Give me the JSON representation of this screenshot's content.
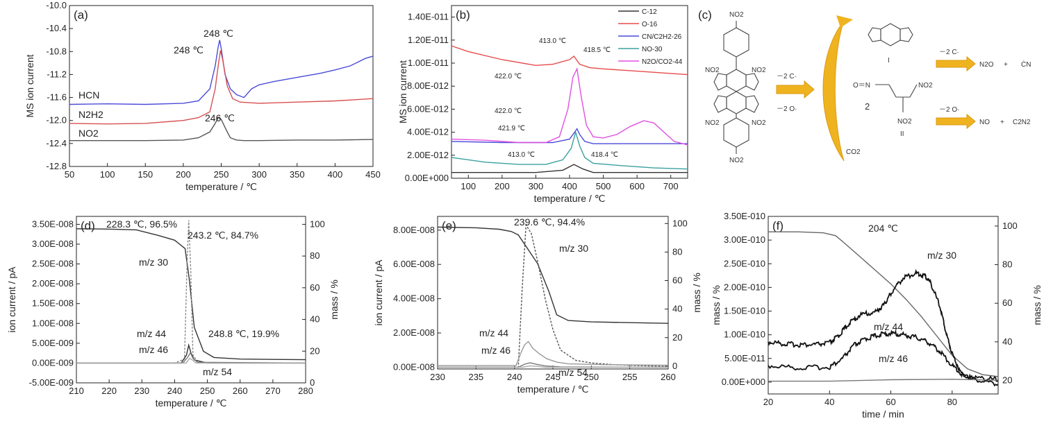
{
  "chart_data": [
    {
      "id": "a",
      "type": "line",
      "panel_label": "(a)",
      "xlabel": "temperature / ℃",
      "ylabel": "MS ion current",
      "xlim": [
        50,
        450
      ],
      "ylim": [
        -12.8,
        -10.0
      ],
      "xticks": [
        50,
        100,
        150,
        200,
        250,
        300,
        350,
        400,
        450
      ],
      "yticks": [
        "-10.0",
        "-10.4",
        "-10.8",
        "-11.2",
        "-11.6",
        "-12.0",
        "-12.4",
        "-12.8"
      ],
      "series": [
        {
          "name": "HCN",
          "color": "#4a4ad8",
          "x": [
            50,
            100,
            150,
            200,
            220,
            235,
            242,
            246,
            248,
            250,
            255,
            262,
            270,
            280,
            290,
            300,
            320,
            350,
            380,
            400,
            420,
            440,
            450
          ],
          "y": [
            -11.72,
            -11.71,
            -11.72,
            -11.7,
            -11.66,
            -11.45,
            -11.05,
            -10.72,
            -10.6,
            -10.75,
            -11.2,
            -11.45,
            -11.55,
            -11.6,
            -11.45,
            -11.38,
            -11.32,
            -11.25,
            -11.18,
            -11.12,
            -11.05,
            -10.92,
            -10.88
          ]
        },
        {
          "name": "N2H2",
          "color": "#d85050",
          "x": [
            50,
            100,
            150,
            200,
            220,
            235,
            242,
            246,
            249,
            252,
            258,
            265,
            275,
            300,
            350,
            400,
            450
          ],
          "y": [
            -12.05,
            -12.06,
            -12.05,
            -12.0,
            -11.95,
            -11.85,
            -11.45,
            -11.05,
            -10.78,
            -10.95,
            -11.4,
            -11.62,
            -11.68,
            -11.7,
            -11.68,
            -11.66,
            -11.62
          ]
        },
        {
          "name": "NO2",
          "color": "#555555",
          "x": [
            50,
            100,
            150,
            200,
            220,
            235,
            242,
            246,
            250,
            256,
            262,
            270,
            280,
            300,
            350,
            400,
            450
          ],
          "y": [
            -12.35,
            -12.35,
            -12.35,
            -12.34,
            -12.3,
            -12.2,
            -12.05,
            -11.95,
            -11.98,
            -12.15,
            -12.3,
            -12.34,
            -12.35,
            -12.35,
            -12.34,
            -12.34,
            -12.33
          ]
        }
      ],
      "series_labels": [
        "HCN",
        "N2H2",
        "NO2"
      ],
      "annotations": [
        "248 ℃",
        "248 ℃",
        "246 ℃"
      ]
    },
    {
      "id": "b",
      "type": "line",
      "panel_label": "(b)",
      "xlabel": "temperature / ℃",
      "ylabel": "MS ion current",
      "xlim": [
        50,
        750
      ],
      "ylim": [
        0,
        1.5e-11
      ],
      "xticks": [
        100,
        200,
        300,
        400,
        500,
        600,
        700
      ],
      "yticks": [
        "0.00E+000",
        "2.00E-012",
        "4.00E-012",
        "6.00E-012",
        "8.00E-012",
        "1.00E-011",
        "1.20E-011",
        "1.40E-011"
      ],
      "ytick_values": [
        0,
        2e-12,
        4e-12,
        6e-12,
        8e-12,
        1e-11,
        1.2e-11,
        1.4e-11
      ],
      "series": [
        {
          "name": "C-12",
          "color": "#333333",
          "x": [
            50,
            200,
            300,
            380,
            413,
            440,
            470,
            550,
            650,
            750
          ],
          "y": [
            5e-13,
            5e-13,
            5e-13,
            7e-13,
            1.2e-12,
            8e-13,
            5e-13,
            5e-13,
            5e-13,
            5e-13
          ]
        },
        {
          "name": "O-16",
          "color": "#e84a4a",
          "x": [
            50,
            100,
            200,
            300,
            350,
            400,
            413,
            418,
            430,
            460,
            500,
            600,
            700,
            750
          ],
          "y": [
            1.15e-11,
            1.1e-11,
            1.03e-11,
            9.8e-12,
            9.9e-12,
            1.03e-11,
            1.06e-11,
            1.04e-11,
            9.9e-12,
            9.6e-12,
            9.5e-12,
            9.3e-12,
            9.1e-12,
            9e-12
          ]
        },
        {
          "name": "CN/C2H2-26",
          "color": "#4a4ad8",
          "x": [
            50,
            200,
            350,
            400,
            415,
            422,
            430,
            445,
            470,
            550,
            650,
            750
          ],
          "y": [
            3.2e-12,
            3.1e-12,
            3.1e-12,
            3.4e-12,
            4e-12,
            4.3e-12,
            3.8e-12,
            3.2e-12,
            3e-12,
            3e-12,
            3e-12,
            3e-12
          ]
        },
        {
          "name": "NO-30",
          "color": "#3aa0a0",
          "x": [
            50,
            150,
            250,
            330,
            380,
            405,
            418,
            430,
            445,
            470,
            550,
            650,
            750
          ],
          "y": [
            1.8e-12,
            1.4e-12,
            1.2e-12,
            1.2e-12,
            1.6e-12,
            2.6e-12,
            4e-12,
            2.8e-12,
            1.8e-12,
            1.3e-12,
            1.1e-12,
            9e-13,
            8e-13
          ]
        },
        {
          "name": "N2O/CO2-44",
          "color": "#e050e0",
          "x": [
            50,
            150,
            250,
            330,
            370,
            395,
            410,
            422,
            435,
            450,
            470,
            500,
            540,
            580,
            620,
            650,
            680,
            710,
            750
          ],
          "y": [
            3.4e-12,
            3.3e-12,
            3.1e-12,
            3.1e-12,
            3.6e-12,
            6e-12,
            8.8e-12,
            9.5e-12,
            7e-12,
            4.6e-12,
            3.6e-12,
            3.5e-12,
            3.8e-12,
            4.5e-12,
            5e-12,
            4.8e-12,
            4e-12,
            3.2e-12,
            2.9e-12
          ]
        }
      ],
      "legend": [
        "C-12",
        "O-16",
        "CN/C2H2-26",
        "NO-30",
        "N2O/CO2-44"
      ],
      "legend_position": "top-right",
      "annotations": [
        "413.0 ℃",
        "418.5 ℃",
        "422.0 ℃",
        "422.0 ℃",
        "421.9 ℃",
        "413.0 ℃",
        "418.4 ℃"
      ]
    },
    {
      "id": "d",
      "type": "line",
      "panel_label": "(d)",
      "xlabel": "temperature / ℃",
      "ylabel": "ion current / pA",
      "y2label": "mass / %",
      "xlim": [
        210,
        280
      ],
      "ylim": [
        -5e-09,
        3.7e-08
      ],
      "y2lim": [
        0,
        105
      ],
      "xticks": [
        210,
        220,
        230,
        240,
        250,
        260,
        270,
        280
      ],
      "yticks": [
        "-5.00E-009",
        "0.00E-009",
        "5.00E-009",
        "1.00E-008",
        "1.50E-008",
        "2.00E-008",
        "2.50E-008",
        "3.00E-008",
        "3.50E-008"
      ],
      "ytick_values": [
        -5e-09,
        0,
        5e-09,
        1e-08,
        1.5e-08,
        2e-08,
        2.5e-08,
        3e-08,
        3.5e-08
      ],
      "y2ticks": [
        0,
        20,
        40,
        60,
        80,
        100
      ],
      "series": [
        {
          "name": "mass",
          "axis": "right",
          "color": "#333333",
          "x": [
            210,
            220,
            228.3,
            235,
            240,
            243.2,
            244.5,
            246,
            248.8,
            252,
            260,
            270,
            280
          ],
          "y": [
            97.2,
            97.0,
            96.5,
            93,
            90,
            84.7,
            65,
            35,
            19.9,
            16,
            15,
            14.8,
            14.6
          ]
        },
        {
          "name": "m/z 30",
          "axis": "left",
          "color": "#888888",
          "dashed": true,
          "x": [
            210,
            240,
            243.0,
            243.8,
            244.3,
            244.9,
            245.6,
            247,
            250,
            280
          ],
          "y": [
            0,
            0,
            1e-09,
            2.5e-08,
            3.6e-08,
            2.4e-08,
            2e-09,
            3e-10,
            0,
            0
          ]
        },
        {
          "name": "m/z 44",
          "axis": "left",
          "color": "#333333",
          "x": [
            210,
            242,
            243.6,
            244.3,
            245.0,
            246,
            250,
            280
          ],
          "y": [
            0,
            0,
            2e-09,
            4.5e-09,
            2.5e-09,
            8e-10,
            0,
            0
          ]
        },
        {
          "name": "m/z 46",
          "axis": "left",
          "color": "#777777",
          "x": [
            210,
            242.5,
            244,
            244.8,
            245.6,
            247,
            280
          ],
          "y": [
            0,
            0,
            1.5e-09,
            2.6e-09,
            1.2e-09,
            2e-10,
            0
          ]
        },
        {
          "name": "m/z 54",
          "axis": "left",
          "color": "#aaaaaa",
          "x": [
            210,
            243.5,
            244.6,
            245.4,
            246.5,
            280
          ],
          "y": [
            0,
            0,
            1.2e-09,
            8e-10,
            0,
            0
          ]
        }
      ],
      "annotations": [
        "228.3 ℃, 96.5%",
        "243.2 ℃, 84.7%",
        "248.8 ℃, 19.9%",
        "m/z 30",
        "m/z 44",
        "m/z 46",
        "m/z 54"
      ]
    },
    {
      "id": "e",
      "type": "line",
      "panel_label": "(e)",
      "xlabel": "temperature / ℃",
      "ylabel": "ion current / pA",
      "y2label": "mass / %",
      "xlim": [
        230,
        260
      ],
      "ylim": [
        -1e-09,
        8.8e-08
      ],
      "y2lim": [
        -2,
        105
      ],
      "xticks": [
        230,
        235,
        240,
        245,
        250,
        255,
        260
      ],
      "yticks": [
        "0.00E-008",
        "2.00E-008",
        "4.00E-008",
        "6.00E-008",
        "8.00E-008"
      ],
      "ytick_values": [
        0,
        2e-08,
        4e-08,
        6e-08,
        8e-08
      ],
      "y2ticks": [
        0,
        20,
        40,
        60,
        80,
        100
      ],
      "series": [
        {
          "name": "mass",
          "axis": "right",
          "color": "#333333",
          "x": [
            230,
            235,
            238,
            239.6,
            240.5,
            241.5,
            243,
            244.5,
            245.5,
            247,
            250,
            255,
            260
          ],
          "y": [
            97.5,
            97.0,
            96,
            94.4,
            92,
            84,
            72,
            52,
            36,
            32,
            31,
            30.5,
            30
          ]
        },
        {
          "name": "m/z 30",
          "axis": "left",
          "color": "#555555",
          "dashed": true,
          "x": [
            230,
            240.5,
            241.0,
            241.5,
            242.2,
            243,
            244,
            245,
            246,
            248,
            250,
            253,
            256,
            260
          ],
          "y": [
            0,
            0,
            4.5e-08,
            8.3e-08,
            7.8e-08,
            6.2e-08,
            4e-08,
            2.2e-08,
            1e-08,
            4e-09,
            2.5e-09,
            1.5e-09,
            1e-09,
            5e-10
          ]
        },
        {
          "name": "m/z 44",
          "axis": "left",
          "color": "#999999",
          "x": [
            230,
            240.2,
            240.8,
            241.3,
            241.8,
            242.4,
            243.2,
            244.2,
            245.5,
            247,
            252,
            260
          ],
          "y": [
            1e-09,
            1e-09,
            8e-09,
            1.3e-08,
            1.5e-08,
            1.1e-08,
            8e-09,
            5e-09,
            3e-09,
            2e-09,
            1.5e-09,
            1.2e-09
          ]
        },
        {
          "name": "m/z 46",
          "axis": "left",
          "color": "#777777",
          "x": [
            230,
            240.5,
            241.3,
            242,
            243,
            244,
            246,
            260
          ],
          "y": [
            0,
            0,
            1.8e-09,
            2.6e-09,
            1.6e-09,
            8e-10,
            2e-10,
            0
          ]
        },
        {
          "name": "m/z 54",
          "axis": "left",
          "color": "#aaaaaa",
          "x": [
            230,
            241,
            242,
            243,
            244,
            260
          ],
          "y": [
            0,
            0,
            8e-10,
            5e-10,
            0,
            0
          ]
        }
      ],
      "annotations": [
        "239.6 ℃, 94.4%",
        "m/z 30",
        "m/z 44",
        "m/z 46",
        "m/z 54"
      ]
    },
    {
      "id": "f",
      "type": "line",
      "panel_label": "(f)",
      "xlabel": "time / min",
      "ylabel": "mass / %",
      "y2label": "mass / %",
      "xlim": [
        20,
        95
      ],
      "ylim": [
        -2.5e-11,
        3.5e-10
      ],
      "y2lim": [
        13,
        105
      ],
      "xticks": [
        20,
        40,
        60,
        80
      ],
      "yticks": [
        "0.00E+000",
        "5.00E-011",
        "1.00E-010",
        "1.50E-010",
        "2.00E-010",
        "2.50E-010",
        "3.00E-010",
        "3.50E-010"
      ],
      "ytick_values": [
        0,
        5e-11,
        1e-10,
        1.5e-10,
        2e-10,
        2.5e-10,
        3e-10,
        3.5e-10
      ],
      "y2ticks": [
        20,
        40,
        60,
        80,
        100
      ],
      "series": [
        {
          "name": "mass",
          "axis": "right",
          "color": "#666666",
          "x": [
            20,
            30,
            38,
            42,
            45,
            50,
            55,
            60,
            65,
            70,
            75,
            80,
            85,
            90,
            95
          ],
          "y": [
            97,
            97,
            96.5,
            95,
            91,
            84,
            77,
            70,
            62,
            53,
            43,
            33,
            26,
            23,
            22
          ]
        },
        {
          "name": "m/z 30",
          "axis": "left",
          "color": "#111111",
          "noisy": true,
          "x": [
            20,
            25,
            30,
            35,
            40,
            43,
            46,
            50,
            55,
            58,
            60,
            64,
            68,
            71,
            73,
            76,
            78,
            80,
            83,
            88,
            95
          ],
          "y": [
            8.5e-11,
            8.1e-11,
            7.9e-11,
            7.9e-11,
            8.3e-11,
            9.8e-11,
            1.22e-10,
            1.42e-10,
            1.48e-10,
            1.65e-10,
            1.88e-10,
            2.2e-10,
            2.3e-10,
            2.25e-10,
            2.1e-10,
            1.6e-10,
            1.05e-10,
            6e-11,
            1.8e-11,
            5e-12,
            -5e-12
          ]
        },
        {
          "name": "m/z 44",
          "axis": "left",
          "color": "#111111",
          "noisy": true,
          "x": [
            20,
            30,
            40,
            44,
            48,
            52,
            56,
            60,
            64,
            68,
            72,
            76,
            80,
            84,
            90,
            95
          ],
          "y": [
            3.5e-11,
            3e-11,
            3.2e-11,
            4.8e-11,
            7.8e-11,
            9.2e-11,
            1e-10,
            1.03e-10,
            1e-10,
            9.5e-11,
            8.5e-11,
            6.5e-11,
            3.5e-11,
            1.2e-11,
            8e-12,
            5e-12
          ]
        },
        {
          "name": "m/z 46",
          "axis": "left",
          "color": "#777777",
          "x": [
            20,
            40,
            60,
            80,
            95
          ],
          "y": [
            2e-12,
            2e-12,
            5e-12,
            6e-12,
            4e-12
          ]
        }
      ],
      "annotations": [
        "204 ℃",
        "m/z 30",
        "m/z 44",
        "m/z 46"
      ]
    }
  ],
  "scheme": {
    "panel_label": "(c)",
    "substituent": "NO2",
    "left_edge_labels": [
      "NO2",
      "NO2",
      "NO2",
      "NO2",
      "NO2",
      "NO2"
    ],
    "arrow_label_top": "－2 C·",
    "arrow_label_bottom": "－2 O·",
    "co2": "CO2",
    "product_i_roman": "I",
    "product_ii_roman": "II",
    "coefficient": "2",
    "product_ii_left": "O＝N",
    "product_ii_right": "NO2",
    "product_ii_bottom": "NO2",
    "upper_arrow_label": "－2 C·",
    "upper_products": [
      "N2O",
      "+",
      "ĊN"
    ],
    "lower_arrow_label": "－2 O·",
    "lower_products": [
      "NO",
      "+",
      "C2N2"
    ]
  }
}
